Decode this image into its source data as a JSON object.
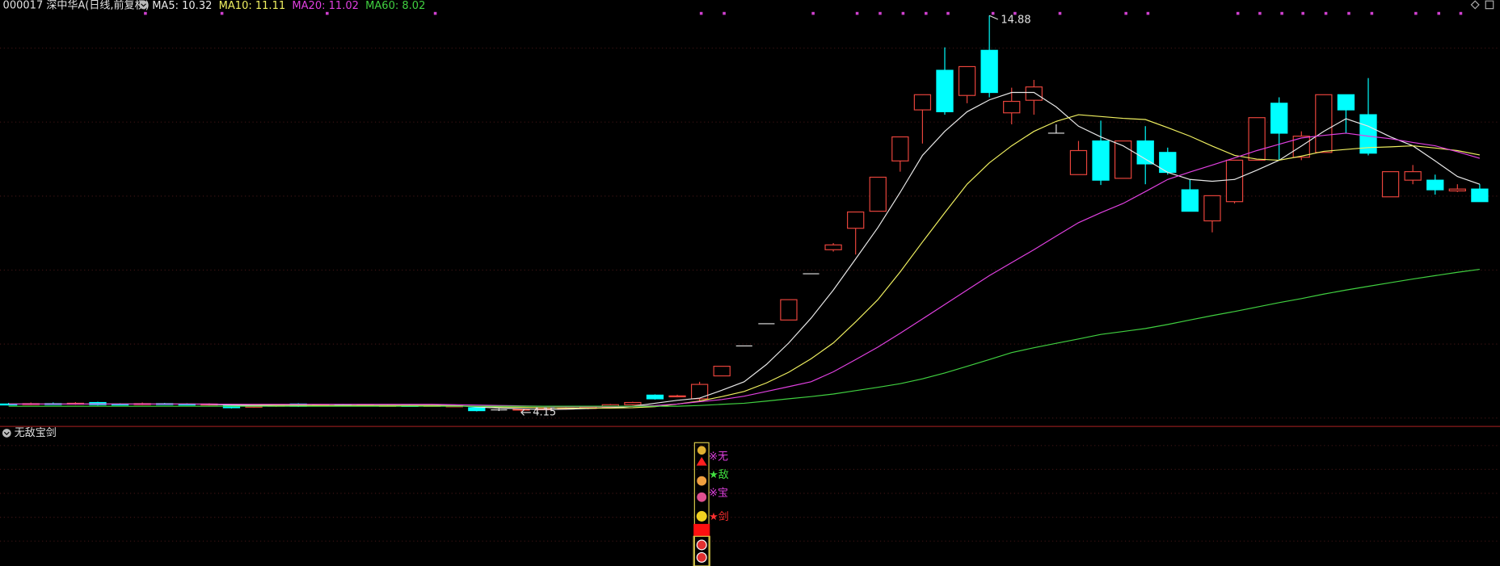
{
  "chart_data": {
    "type": "candlestick",
    "title": "000017 深中华A(日线,前复权)",
    "up_color": "#e8443c",
    "down_color": "#00ffff",
    "flat_color": "#e8e8e8",
    "ylim": [
      3.8,
      15.3
    ],
    "ygrid": [
      4,
      6,
      8,
      10,
      12,
      14
    ],
    "open": [
      4.38,
      4.37,
      4.39,
      4.38,
      4.42,
      4.38,
      4.37,
      4.39,
      4.38,
      4.36,
      4.34,
      4.3,
      4.32,
      4.38,
      4.35,
      4.36,
      4.34,
      4.33,
      4.34,
      4.33,
      4.32,
      4.28,
      4.22,
      4.22,
      4.24,
      4.25,
      4.26,
      4.3,
      4.36,
      4.62,
      4.58,
      4.52,
      5.14,
      5.95,
      6.55,
      6.65,
      7.9,
      8.55,
      9.13,
      9.59,
      10.95,
      12.33,
      13.4,
      12.72,
      13.94,
      12.25,
      12.59,
      11.7,
      10.58,
      11.49,
      10.48,
      11.49,
      11.18,
      10.17,
      9.33,
      9.85,
      10.97,
      12.51,
      11.05,
      11.18,
      12.74,
      12.2,
      9.98,
      10.43,
      10.43,
      10.14,
      10.19
    ],
    "high": [
      4.41,
      4.42,
      4.42,
      4.43,
      4.44,
      4.4,
      4.42,
      4.41,
      4.4,
      4.4,
      4.36,
      4.34,
      4.37,
      4.4,
      4.38,
      4.38,
      4.37,
      4.36,
      4.36,
      4.36,
      4.35,
      4.3,
      4.25,
      4.26,
      4.27,
      4.29,
      4.32,
      4.38,
      4.44,
      4.64,
      4.63,
      4.98,
      5.4,
      5.95,
      6.55,
      7.2,
      7.9,
      8.73,
      9.57,
      10.51,
      11.6,
      12.74,
      14.02,
      13.5,
      14.88,
      12.93,
      13.14,
      11.94,
      11.49,
      12.04,
      11.49,
      11.89,
      11.31,
      10.45,
      10.01,
      10.97,
      12.12,
      12.67,
      11.75,
      12.74,
      12.74,
      13.19,
      10.66,
      10.84,
      10.58,
      10.32,
      10.32
    ],
    "low": [
      4.35,
      4.35,
      4.36,
      4.36,
      4.34,
      4.35,
      4.35,
      4.36,
      4.35,
      4.34,
      4.26,
      4.28,
      4.3,
      4.3,
      4.33,
      4.32,
      4.32,
      4.31,
      4.31,
      4.3,
      4.3,
      4.18,
      4.19,
      4.15,
      4.22,
      4.23,
      4.24,
      4.28,
      4.34,
      4.5,
      4.56,
      4.46,
      5.14,
      5.95,
      6.55,
      6.65,
      7.9,
      8.5,
      8.42,
      9.59,
      10.66,
      11.42,
      12.2,
      12.51,
      12.67,
      11.94,
      12.2,
      11.7,
      10.58,
      10.3,
      10.48,
      10.32,
      10.58,
      9.59,
      9.02,
      9.8,
      10.97,
      10.97,
      10.97,
      11.18,
      11.7,
      11.1,
      9.98,
      10.32,
      10.04,
      10.11,
      9.85
    ],
    "close": [
      4.37,
      4.39,
      4.38,
      4.4,
      4.36,
      4.37,
      4.39,
      4.38,
      4.37,
      4.38,
      4.28,
      4.32,
      4.35,
      4.32,
      4.36,
      4.34,
      4.35,
      4.34,
      4.33,
      4.34,
      4.33,
      4.2,
      4.22,
      4.24,
      4.25,
      4.27,
      4.3,
      4.36,
      4.42,
      4.52,
      4.6,
      4.91,
      5.4,
      5.95,
      6.55,
      7.2,
      7.9,
      8.68,
      9.57,
      10.51,
      11.6,
      12.74,
      12.28,
      13.5,
      12.8,
      12.56,
      12.95,
      11.7,
      11.23,
      10.43,
      11.49,
      10.87,
      10.64,
      9.59,
      10.01,
      10.97,
      12.12,
      11.7,
      11.62,
      12.74,
      12.33,
      11.16,
      10.66,
      10.66,
      10.17,
      10.19,
      9.85
    ],
    "series": [
      {
        "name": "MA5",
        "legend": "MA5: 10.32",
        "color": "#e8e8e8",
        "values": [
          4.38,
          4.38,
          4.38,
          4.38,
          4.38,
          4.38,
          4.38,
          4.38,
          4.38,
          4.37,
          4.35,
          4.34,
          4.33,
          4.33,
          4.33,
          4.34,
          4.34,
          4.34,
          4.34,
          4.34,
          4.34,
          4.3,
          4.27,
          4.25,
          4.23,
          4.24,
          4.26,
          4.28,
          4.32,
          4.4,
          4.48,
          4.54,
          4.75,
          4.98,
          5.45,
          6.03,
          6.7,
          7.46,
          8.3,
          9.15,
          10.1,
          11.1,
          11.75,
          12.28,
          12.6,
          12.8,
          12.8,
          12.41,
          11.89,
          11.6,
          11.36,
          11.0,
          10.64,
          10.45,
          10.4,
          10.45,
          10.7,
          10.97,
          11.35,
          11.75,
          12.09,
          11.89,
          11.6,
          11.36,
          10.95,
          10.53,
          10.32
        ]
      },
      {
        "name": "MA10",
        "legend": "MA10: 11.11",
        "color": "#f0f060",
        "values": [
          4.38,
          4.38,
          4.38,
          4.38,
          4.38,
          4.38,
          4.38,
          4.38,
          4.38,
          4.38,
          4.37,
          4.36,
          4.35,
          4.35,
          4.34,
          4.34,
          4.34,
          4.34,
          4.34,
          4.34,
          4.33,
          4.32,
          4.3,
          4.29,
          4.28,
          4.27,
          4.27,
          4.27,
          4.28,
          4.31,
          4.38,
          4.46,
          4.58,
          4.72,
          4.95,
          5.24,
          5.6,
          6.03,
          6.6,
          7.2,
          7.95,
          8.76,
          9.55,
          10.32,
          10.9,
          11.36,
          11.75,
          12.02,
          12.2,
          12.15,
          12.1,
          12.07,
          11.85,
          11.62,
          11.35,
          11.1,
          11.0,
          10.97,
          11.08,
          11.21,
          11.26,
          11.31,
          11.33,
          11.36,
          11.3,
          11.23,
          11.11
        ]
      },
      {
        "name": "MA20",
        "legend": "MA20: 11.02",
        "color": "#e040e0",
        "values": [
          4.38,
          4.38,
          4.38,
          4.38,
          4.38,
          4.38,
          4.38,
          4.38,
          4.38,
          4.38,
          4.37,
          4.37,
          4.37,
          4.37,
          4.37,
          4.37,
          4.37,
          4.37,
          4.37,
          4.37,
          4.36,
          4.35,
          4.34,
          4.33,
          4.32,
          4.31,
          4.31,
          4.31,
          4.32,
          4.34,
          4.38,
          4.44,
          4.5,
          4.59,
          4.72,
          4.85,
          4.98,
          5.25,
          5.58,
          5.92,
          6.29,
          6.68,
          7.07,
          7.46,
          7.85,
          8.2,
          8.55,
          8.92,
          9.28,
          9.55,
          9.8,
          10.12,
          10.45,
          10.65,
          10.84,
          11.03,
          11.23,
          11.4,
          11.57,
          11.64,
          11.7,
          11.62,
          11.55,
          11.45,
          11.36,
          11.2,
          11.02
        ]
      },
      {
        "name": "MA60",
        "legend": "MA60: 8.02",
        "color": "#40d040",
        "values": [
          4.32,
          4.32,
          4.32,
          4.32,
          4.32,
          4.32,
          4.32,
          4.32,
          4.32,
          4.32,
          4.32,
          4.32,
          4.32,
          4.32,
          4.32,
          4.32,
          4.32,
          4.32,
          4.32,
          4.32,
          4.32,
          4.32,
          4.32,
          4.32,
          4.32,
          4.32,
          4.32,
          4.32,
          4.32,
          4.32,
          4.32,
          4.34,
          4.37,
          4.4,
          4.46,
          4.52,
          4.58,
          4.65,
          4.74,
          4.83,
          4.93,
          5.06,
          5.22,
          5.4,
          5.58,
          5.77,
          5.9,
          6.02,
          6.14,
          6.26,
          6.34,
          6.42,
          6.53,
          6.65,
          6.77,
          6.88,
          7.0,
          7.12,
          7.23,
          7.35,
          7.46,
          7.56,
          7.66,
          7.76,
          7.85,
          7.94,
          8.02
        ]
      }
    ]
  },
  "indicator": {
    "title": "无敌宝剑",
    "labels": [
      {
        "text": "※无",
        "color": "#e040e0"
      },
      {
        "text": "★敌",
        "color": "#40e040"
      },
      {
        "text": "※宝",
        "color": "#e040e0"
      },
      {
        "text": "★剑",
        "color": "#ff3030"
      }
    ]
  }
}
